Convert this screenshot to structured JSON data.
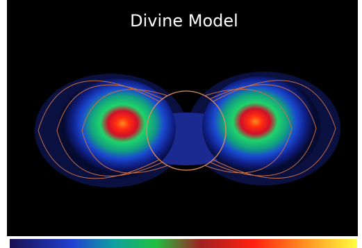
{
  "title": "Divine Model"
}
